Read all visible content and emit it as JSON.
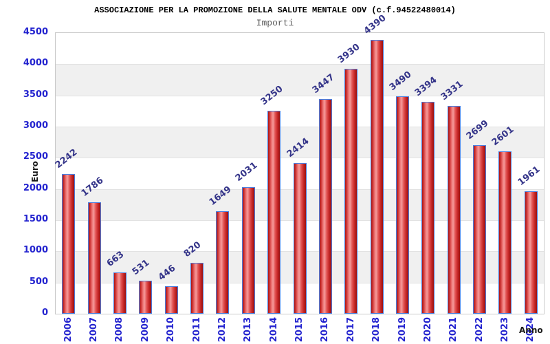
{
  "chart": {
    "title": "ASSOCIAZIONE PER LA PROMOZIONE DELLA SALUTE MENTALE ODV (c.f.94522480014)",
    "subtitle": "Importi",
    "y_axis_title": "Euro",
    "x_axis_title": "Anno"
  },
  "chart_data": {
    "type": "bar",
    "title": "ASSOCIAZIONE PER LA PROMOZIONE DELLA SALUTE MENTALE ODV (c.f.94522480014)",
    "subtitle": "Importi",
    "xlabel": "Anno",
    "ylabel": "Euro",
    "categories": [
      "2006",
      "2007",
      "2008",
      "2009",
      "2010",
      "2011",
      "2012",
      "2013",
      "2014",
      "2015",
      "2016",
      "2017",
      "2018",
      "2019",
      "2020",
      "2021",
      "2022",
      "2023",
      "2024"
    ],
    "values": [
      2242,
      1786,
      663,
      531,
      446,
      820,
      1649,
      2031,
      3250,
      2414,
      3447,
      3930,
      4390,
      3490,
      3394,
      3331,
      2699,
      2601,
      1961
    ],
    "ylim": [
      0,
      4500
    ],
    "y_ticks": [
      0,
      500,
      1000,
      1500,
      2000,
      2500,
      3000,
      3500,
      4000,
      4500
    ],
    "grid": "horizontal-bands",
    "legend": "none",
    "colors": {
      "bar_border": "#4a7fe0",
      "bar_fill_dark": "#a81414",
      "bar_fill_light": "#f59a9a",
      "band": "#f0f0f0",
      "gridline": "#e2e2e2",
      "frame": "#c9c9c9",
      "tick_label": "#2323cf",
      "value_label": "#343489",
      "title": "#000000",
      "subtitle": "#5a5a5a"
    }
  }
}
